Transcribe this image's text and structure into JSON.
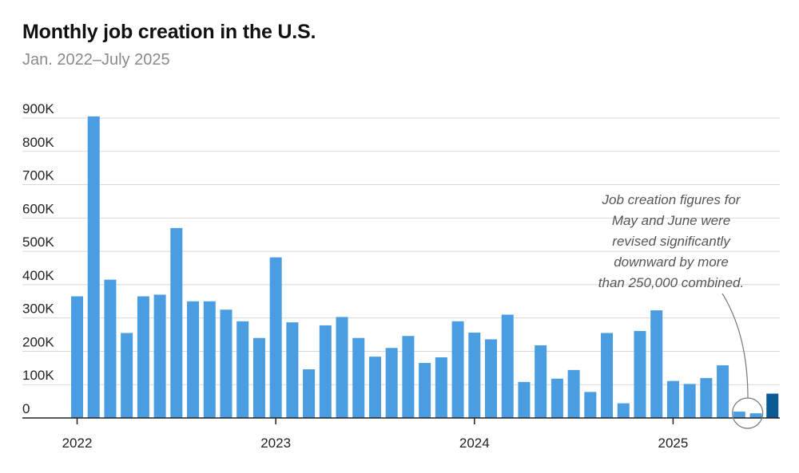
{
  "header": {
    "title": "Monthly job creation in the U.S.",
    "subtitle": "Jan. 2022–July 2025"
  },
  "colors": {
    "bar": "#4a9de0",
    "highlight": "#0a5a96",
    "grid": "#d8d8d8",
    "axis": "#222222",
    "annotation_line": "#777777"
  },
  "chart_data": {
    "type": "bar",
    "title": "Monthly job creation in the U.S.",
    "subtitle": "Jan. 2022–July 2025",
    "xlabel": "",
    "ylabel": "",
    "ylim": [
      0,
      900000
    ],
    "yticks": [
      {
        "value": 0,
        "label": "0"
      },
      {
        "value": 100000,
        "label": "100K"
      },
      {
        "value": 200000,
        "label": "200K"
      },
      {
        "value": 300000,
        "label": "300K"
      },
      {
        "value": 400000,
        "label": "400K"
      },
      {
        "value": 500000,
        "label": "500K"
      },
      {
        "value": 600000,
        "label": "600K"
      },
      {
        "value": 700000,
        "label": "700K"
      },
      {
        "value": 800000,
        "label": "800K"
      },
      {
        "value": 900000,
        "label": "900K"
      }
    ],
    "xticks": [
      {
        "index": 0,
        "label": "2022"
      },
      {
        "index": 12,
        "label": "2023"
      },
      {
        "index": 24,
        "label": "2024"
      },
      {
        "index": 36,
        "label": "2025"
      }
    ],
    "categories": [
      "2022-01",
      "2022-02",
      "2022-03",
      "2022-04",
      "2022-05",
      "2022-06",
      "2022-07",
      "2022-08",
      "2022-09",
      "2022-10",
      "2022-11",
      "2022-12",
      "2023-01",
      "2023-02",
      "2023-03",
      "2023-04",
      "2023-05",
      "2023-06",
      "2023-07",
      "2023-08",
      "2023-09",
      "2023-10",
      "2023-11",
      "2023-12",
      "2024-01",
      "2024-02",
      "2024-03",
      "2024-04",
      "2024-05",
      "2024-06",
      "2024-07",
      "2024-08",
      "2024-09",
      "2024-10",
      "2024-11",
      "2024-12",
      "2025-01",
      "2025-02",
      "2025-03",
      "2025-04",
      "2025-05",
      "2025-06",
      "2025-07"
    ],
    "values": [
      365000,
      905000,
      415000,
      255000,
      365000,
      370000,
      570000,
      350000,
      350000,
      325000,
      290000,
      240000,
      482000,
      287000,
      146000,
      278000,
      303000,
      240000,
      184000,
      210000,
      246000,
      165000,
      182000,
      290000,
      256000,
      236000,
      310000,
      108000,
      218000,
      118000,
      144000,
      78000,
      255000,
      44000,
      261000,
      323000,
      111000,
      102000,
      120000,
      158000,
      19000,
      14000,
      73000
    ],
    "highlight_index": 42,
    "annotation": {
      "lines": [
        "Job creation figures for",
        "May and June were",
        "revised significantly",
        "downward by more",
        "than 250,000 combined."
      ],
      "target_indices": [
        40,
        41
      ]
    }
  }
}
